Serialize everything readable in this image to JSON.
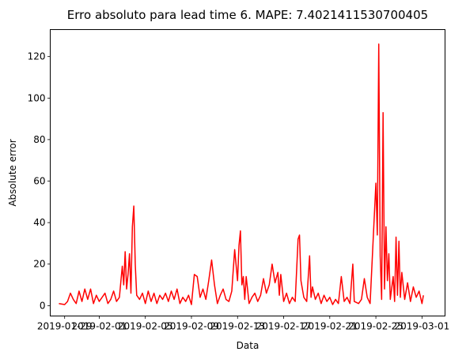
{
  "chart_data": {
    "type": "line",
    "title": "Erro absoluto para lead time 6. MAPE: 7.4021411530700405",
    "xlabel": "Data",
    "ylabel": "Absolute error",
    "grid": false,
    "legend": "none",
    "xlim": [
      "2019-01-27T18:00",
      "2019-03-03T00:00"
    ],
    "ylim": [
      -5,
      133
    ],
    "x_ticks": [
      "2019-01-29",
      "2019-02-01",
      "2019-02-05",
      "2019-02-09",
      "2019-02-13",
      "2019-02-17",
      "2019-02-21",
      "2019-02-25",
      "2019-03-01"
    ],
    "y_ticks": [
      0,
      20,
      40,
      60,
      80,
      100,
      120
    ],
    "series": [
      {
        "color": "#ff0000",
        "points": [
          [
            "2019-01-28T12:00",
            1
          ],
          [
            "2019-01-29T00:00",
            0.5
          ],
          [
            "2019-01-29T06:00",
            2
          ],
          [
            "2019-01-29T12:00",
            6
          ],
          [
            "2019-01-29T18:00",
            3
          ],
          [
            "2019-01-30T00:00",
            1
          ],
          [
            "2019-01-30T06:00",
            7
          ],
          [
            "2019-01-30T12:00",
            2
          ],
          [
            "2019-01-30T18:00",
            8
          ],
          [
            "2019-01-31T00:00",
            3
          ],
          [
            "2019-01-31T06:00",
            8
          ],
          [
            "2019-01-31T12:00",
            1
          ],
          [
            "2019-01-31T18:00",
            5
          ],
          [
            "2019-02-01T00:00",
            2
          ],
          [
            "2019-02-01T12:00",
            6
          ],
          [
            "2019-02-01T18:00",
            1
          ],
          [
            "2019-02-02T00:00",
            3
          ],
          [
            "2019-02-02T06:00",
            7
          ],
          [
            "2019-02-02T12:00",
            2
          ],
          [
            "2019-02-02T18:00",
            4
          ],
          [
            "2019-02-03T00:00",
            19
          ],
          [
            "2019-02-03T03:00",
            10
          ],
          [
            "2019-02-03T06:00",
            26
          ],
          [
            "2019-02-03T09:00",
            8
          ],
          [
            "2019-02-03T12:00",
            15
          ],
          [
            "2019-02-03T15:00",
            25
          ],
          [
            "2019-02-03T18:00",
            6
          ],
          [
            "2019-02-03T21:00",
            38
          ],
          [
            "2019-02-04T00:00",
            48
          ],
          [
            "2019-02-04T03:00",
            20
          ],
          [
            "2019-02-04T06:00",
            5
          ],
          [
            "2019-02-04T12:00",
            3
          ],
          [
            "2019-02-04T18:00",
            6
          ],
          [
            "2019-02-05T00:00",
            1
          ],
          [
            "2019-02-05T06:00",
            7
          ],
          [
            "2019-02-05T12:00",
            2
          ],
          [
            "2019-02-05T18:00",
            6
          ],
          [
            "2019-02-06T00:00",
            1
          ],
          [
            "2019-02-06T06:00",
            5
          ],
          [
            "2019-02-06T12:00",
            3
          ],
          [
            "2019-02-06T18:00",
            6
          ],
          [
            "2019-02-07T00:00",
            2
          ],
          [
            "2019-02-07T06:00",
            7
          ],
          [
            "2019-02-07T12:00",
            3
          ],
          [
            "2019-02-07T18:00",
            8
          ],
          [
            "2019-02-08T00:00",
            1
          ],
          [
            "2019-02-08T06:00",
            4
          ],
          [
            "2019-02-08T12:00",
            2
          ],
          [
            "2019-02-08T18:00",
            5
          ],
          [
            "2019-02-09T00:00",
            0.5
          ],
          [
            "2019-02-09T06:00",
            15
          ],
          [
            "2019-02-09T12:00",
            14
          ],
          [
            "2019-02-09T18:00",
            4
          ],
          [
            "2019-02-10T00:00",
            8
          ],
          [
            "2019-02-10T06:00",
            3
          ],
          [
            "2019-02-10T12:00",
            12
          ],
          [
            "2019-02-10T18:00",
            22
          ],
          [
            "2019-02-11T00:00",
            10
          ],
          [
            "2019-02-11T06:00",
            1
          ],
          [
            "2019-02-11T12:00",
            5
          ],
          [
            "2019-02-11T18:00",
            8
          ],
          [
            "2019-02-12T00:00",
            3
          ],
          [
            "2019-02-12T06:00",
            2
          ],
          [
            "2019-02-12T12:00",
            7
          ],
          [
            "2019-02-12T18:00",
            27
          ],
          [
            "2019-02-13T00:00",
            12
          ],
          [
            "2019-02-13T03:00",
            29
          ],
          [
            "2019-02-13T06:00",
            36
          ],
          [
            "2019-02-13T09:00",
            10
          ],
          [
            "2019-02-13T12:00",
            14
          ],
          [
            "2019-02-13T15:00",
            3
          ],
          [
            "2019-02-13T18:00",
            14
          ],
          [
            "2019-02-14T00:00",
            1
          ],
          [
            "2019-02-14T06:00",
            4
          ],
          [
            "2019-02-14T12:00",
            6
          ],
          [
            "2019-02-14T18:00",
            2
          ],
          [
            "2019-02-15T00:00",
            5
          ],
          [
            "2019-02-15T06:00",
            13
          ],
          [
            "2019-02-15T12:00",
            6
          ],
          [
            "2019-02-15T18:00",
            10
          ],
          [
            "2019-02-16T00:00",
            20
          ],
          [
            "2019-02-16T06:00",
            11
          ],
          [
            "2019-02-16T12:00",
            16
          ],
          [
            "2019-02-16T15:00",
            5
          ],
          [
            "2019-02-16T18:00",
            15
          ],
          [
            "2019-02-17T00:00",
            2
          ],
          [
            "2019-02-17T06:00",
            6
          ],
          [
            "2019-02-17T12:00",
            1
          ],
          [
            "2019-02-17T18:00",
            4
          ],
          [
            "2019-02-18T00:00",
            2
          ],
          [
            "2019-02-18T06:00",
            32
          ],
          [
            "2019-02-18T09:00",
            34
          ],
          [
            "2019-02-18T12:00",
            12
          ],
          [
            "2019-02-18T18:00",
            4
          ],
          [
            "2019-02-19T00:00",
            2
          ],
          [
            "2019-02-19T06:00",
            24
          ],
          [
            "2019-02-19T09:00",
            4
          ],
          [
            "2019-02-19T12:00",
            9
          ],
          [
            "2019-02-19T18:00",
            3
          ],
          [
            "2019-02-20T00:00",
            6
          ],
          [
            "2019-02-20T06:00",
            1
          ],
          [
            "2019-02-20T12:00",
            5
          ],
          [
            "2019-02-20T18:00",
            2
          ],
          [
            "2019-02-21T00:00",
            4
          ],
          [
            "2019-02-21T06:00",
            0.5
          ],
          [
            "2019-02-21T12:00",
            3
          ],
          [
            "2019-02-21T18:00",
            1
          ],
          [
            "2019-02-22T00:00",
            14
          ],
          [
            "2019-02-22T06:00",
            2
          ],
          [
            "2019-02-22T12:00",
            4
          ],
          [
            "2019-02-22T18:00",
            1
          ],
          [
            "2019-02-23T00:00",
            20
          ],
          [
            "2019-02-23T03:00",
            2
          ],
          [
            "2019-02-23T12:00",
            1
          ],
          [
            "2019-02-23T18:00",
            3
          ],
          [
            "2019-02-24T00:00",
            13
          ],
          [
            "2019-02-24T06:00",
            4
          ],
          [
            "2019-02-24T12:00",
            1
          ],
          [
            "2019-02-25T00:00",
            59
          ],
          [
            "2019-02-25T03:00",
            34
          ],
          [
            "2019-02-25T06:00",
            126
          ],
          [
            "2019-02-25T09:00",
            24
          ],
          [
            "2019-02-25T12:00",
            3
          ],
          [
            "2019-02-25T15:00",
            93
          ],
          [
            "2019-02-25T18:00",
            8
          ],
          [
            "2019-02-25T21:00",
            38
          ],
          [
            "2019-02-26T00:00",
            12
          ],
          [
            "2019-02-26T03:00",
            25
          ],
          [
            "2019-02-26T06:00",
            3
          ],
          [
            "2019-02-26T12:00",
            14
          ],
          [
            "2019-02-26T15:00",
            2
          ],
          [
            "2019-02-26T18:00",
            33
          ],
          [
            "2019-02-26T21:00",
            5
          ],
          [
            "2019-02-27T00:00",
            31
          ],
          [
            "2019-02-27T03:00",
            4
          ],
          [
            "2019-02-27T06:00",
            16
          ],
          [
            "2019-02-27T12:00",
            3
          ],
          [
            "2019-02-27T18:00",
            11
          ],
          [
            "2019-02-28T00:00",
            2
          ],
          [
            "2019-02-28T06:00",
            9
          ],
          [
            "2019-02-28T12:00",
            4
          ],
          [
            "2019-02-28T18:00",
            7
          ],
          [
            "2019-03-01T00:00",
            1
          ],
          [
            "2019-03-01T03:00",
            5
          ]
        ]
      }
    ]
  }
}
